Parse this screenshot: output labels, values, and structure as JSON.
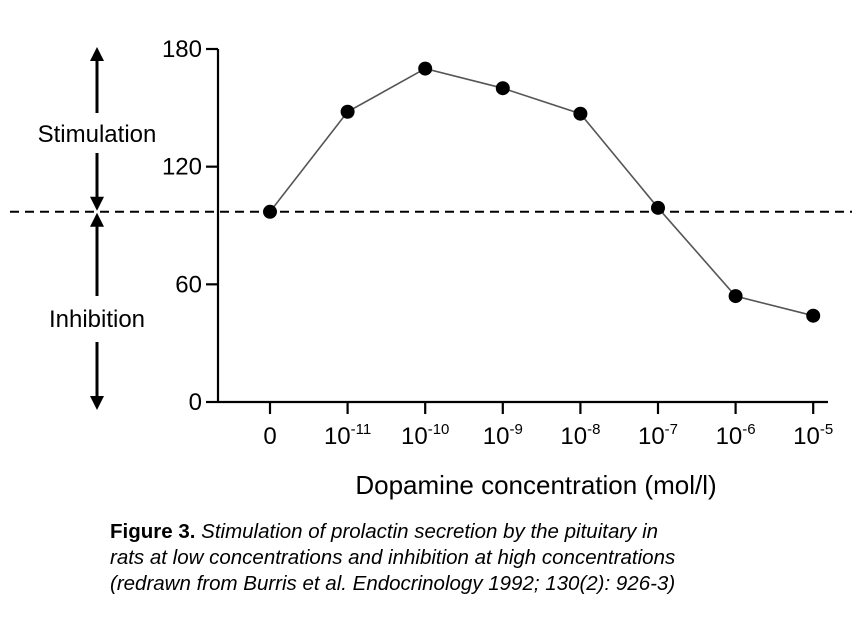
{
  "chart_data": {
    "type": "line",
    "xlabel": "Dopamine concentration (mol/l)",
    "ylabel": "",
    "categories": [
      {
        "base": "0",
        "exp": ""
      },
      {
        "base": "10",
        "exp": "-11"
      },
      {
        "base": "10",
        "exp": "-10"
      },
      {
        "base": "10",
        "exp": "-9"
      },
      {
        "base": "10",
        "exp": "-8"
      },
      {
        "base": "10",
        "exp": "-7"
      },
      {
        "base": "10",
        "exp": "-6"
      },
      {
        "base": "10",
        "exp": "-5"
      }
    ],
    "values": [
      97,
      148,
      170,
      160,
      147,
      99,
      54,
      44
    ],
    "ylim": [
      0,
      180
    ],
    "yticks": [
      0,
      60,
      120,
      180
    ],
    "baseline": 97,
    "regions": {
      "above": "Stimulation",
      "below": "Inhibition"
    },
    "grid": false,
    "colors": {
      "line": "#555555",
      "marker": "#000000",
      "axis": "#000000"
    }
  },
  "caption": {
    "label": "Figure 3.",
    "line1": "Stimulation of prolactin secretion by the pituitary in",
    "line2": "rats at low concentrations and inhibition at high concentrations",
    "line3": "(redrawn from Burris et al. Endocrinology 1992; 130(2): 926-3)"
  }
}
